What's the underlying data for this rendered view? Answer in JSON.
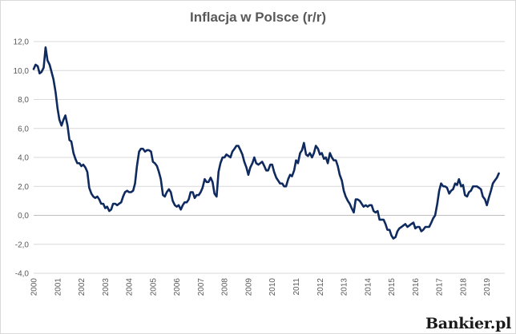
{
  "chart_data": {
    "type": "line",
    "title": "Inflacja w Polsce (r/r)",
    "xlabel": "",
    "ylabel": "",
    "ylim": [
      -4,
      12
    ],
    "y_ticks": [
      "-4,0",
      "-2,0",
      "0,0",
      "2,0",
      "4,0",
      "6,0",
      "8,0",
      "10,0",
      "12,0"
    ],
    "x_ticks": [
      "2000",
      "2001",
      "2002",
      "2003",
      "2004",
      "2005",
      "2006",
      "2007",
      "2008",
      "2009",
      "2010",
      "2011",
      "2012",
      "2013",
      "2014",
      "2015",
      "2016",
      "2017",
      "2018",
      "2019"
    ],
    "grid": true,
    "legend": "none",
    "line_color": "#0f2a5e",
    "series": [
      {
        "x": [
          2000.0,
          2000.08,
          2000.17,
          2000.25,
          2000.33,
          2000.42,
          2000.5,
          2000.58,
          2000.67,
          2000.75,
          2000.83,
          2000.92,
          2001.0,
          2001.08,
          2001.17,
          2001.25,
          2001.33,
          2001.42,
          2001.5,
          2001.58,
          2001.67,
          2001.75,
          2001.83,
          2001.92,
          2002.0,
          2002.08,
          2002.17,
          2002.25,
          2002.33,
          2002.42,
          2002.5,
          2002.58,
          2002.67,
          2002.75,
          2002.83,
          2002.92,
          2003.0,
          2003.08,
          2003.17,
          2003.25,
          2003.33,
          2003.42,
          2003.5,
          2003.58,
          2003.67,
          2003.75,
          2003.83,
          2003.92,
          2004.0,
          2004.08,
          2004.17,
          2004.25,
          2004.33,
          2004.42,
          2004.5,
          2004.58,
          2004.67,
          2004.75,
          2004.83,
          2004.92,
          2005.0,
          2005.08,
          2005.17,
          2005.25,
          2005.33,
          2005.42,
          2005.5,
          2005.58,
          2005.67,
          2005.75,
          2005.83,
          2005.92,
          2006.0,
          2006.08,
          2006.17,
          2006.25,
          2006.33,
          2006.42,
          2006.5,
          2006.58,
          2006.67,
          2006.75,
          2006.83,
          2006.92,
          2007.0,
          2007.08,
          2007.17,
          2007.25,
          2007.33,
          2007.42,
          2007.5,
          2007.58,
          2007.67,
          2007.75,
          2007.83,
          2007.92,
          2008.0,
          2008.08,
          2008.17,
          2008.25,
          2008.33,
          2008.42,
          2008.5,
          2008.58,
          2008.67,
          2008.75,
          2008.83,
          2008.92,
          2009.0,
          2009.08,
          2009.17,
          2009.25,
          2009.33,
          2009.42,
          2009.5,
          2009.58,
          2009.67,
          2009.75,
          2009.83,
          2009.92,
          2010.0,
          2010.08,
          2010.17,
          2010.25,
          2010.33,
          2010.42,
          2010.5,
          2010.58,
          2010.67,
          2010.75,
          2010.83,
          2010.92,
          2011.0,
          2011.08,
          2011.17,
          2011.25,
          2011.33,
          2011.42,
          2011.5,
          2011.58,
          2011.67,
          2011.75,
          2011.83,
          2011.92,
          2012.0,
          2012.08,
          2012.17,
          2012.25,
          2012.33,
          2012.42,
          2012.5,
          2012.58,
          2012.67,
          2012.75,
          2012.83,
          2012.92,
          2013.0,
          2013.08,
          2013.17,
          2013.25,
          2013.33,
          2013.42,
          2013.5,
          2013.58,
          2013.67,
          2013.75,
          2013.83,
          2013.92,
          2014.0,
          2014.08,
          2014.17,
          2014.25,
          2014.33,
          2014.42,
          2014.5,
          2014.58,
          2014.67,
          2014.75,
          2014.83,
          2014.92,
          2015.0,
          2015.08,
          2015.17,
          2015.25,
          2015.33,
          2015.42,
          2015.5,
          2015.58,
          2015.67,
          2015.75,
          2015.83,
          2015.92,
          2016.0,
          2016.08,
          2016.17,
          2016.25,
          2016.33,
          2016.42,
          2016.5,
          2016.58,
          2016.67,
          2016.75,
          2016.83,
          2016.92,
          2017.0,
          2017.08,
          2017.17,
          2017.25,
          2017.33,
          2017.42,
          2017.5,
          2017.58,
          2017.67,
          2017.75,
          2017.83,
          2017.92,
          2018.0,
          2018.08,
          2018.17,
          2018.25,
          2018.33,
          2018.42,
          2018.5,
          2018.58,
          2018.67,
          2018.75,
          2018.83,
          2018.92,
          2019.0,
          2019.08,
          2019.17,
          2019.25,
          2019.33,
          2019.42,
          2019.5
        ],
        "y": [
          10.1,
          10.4,
          10.3,
          9.8,
          9.9,
          10.2,
          11.6,
          10.7,
          10.4,
          9.9,
          9.4,
          8.5,
          7.4,
          6.6,
          6.2,
          6.6,
          6.9,
          6.2,
          5.2,
          5.1,
          4.3,
          3.9,
          3.6,
          3.6,
          3.4,
          3.5,
          3.3,
          3.0,
          1.9,
          1.5,
          1.3,
          1.2,
          1.3,
          1.1,
          0.8,
          0.8,
          0.5,
          0.6,
          0.3,
          0.4,
          0.8,
          0.8,
          0.7,
          0.8,
          0.9,
          1.3,
          1.6,
          1.7,
          1.6,
          1.6,
          1.7,
          2.2,
          3.4,
          4.4,
          4.6,
          4.6,
          4.4,
          4.5,
          4.5,
          4.4,
          3.7,
          3.6,
          3.4,
          3.0,
          2.5,
          1.4,
          1.3,
          1.6,
          1.8,
          1.6,
          1.0,
          0.7,
          0.6,
          0.7,
          0.4,
          0.7,
          0.9,
          0.9,
          1.1,
          1.6,
          1.6,
          1.2,
          1.4,
          1.4,
          1.6,
          1.9,
          2.5,
          2.3,
          2.3,
          2.6,
          2.3,
          1.5,
          1.3,
          3.0,
          3.6,
          4.0,
          4.0,
          4.2,
          4.1,
          4.0,
          4.4,
          4.6,
          4.8,
          4.8,
          4.5,
          4.2,
          3.7,
          3.3,
          2.8,
          3.3,
          3.6,
          4.0,
          3.6,
          3.5,
          3.6,
          3.7,
          3.4,
          3.1,
          3.1,
          3.5,
          3.5,
          3.0,
          2.6,
          2.4,
          2.2,
          2.2,
          2.0,
          2.0,
          2.5,
          2.8,
          2.7,
          3.1,
          3.8,
          3.6,
          4.3,
          4.5,
          5.0,
          4.2,
          4.1,
          4.3,
          4.0,
          4.3,
          4.8,
          4.6,
          4.2,
          4.3,
          3.9,
          4.0,
          3.6,
          4.3,
          4.0,
          3.8,
          3.8,
          3.4,
          2.8,
          2.4,
          1.7,
          1.3,
          1.0,
          0.8,
          0.5,
          0.2,
          1.1,
          1.1,
          1.0,
          0.8,
          0.6,
          0.7,
          0.6,
          0.7,
          0.7,
          0.3,
          0.2,
          0.3,
          -0.3,
          -0.3,
          -0.3,
          -0.6,
          -1.0,
          -1.0,
          -1.4,
          -1.6,
          -1.5,
          -1.1,
          -0.9,
          -0.8,
          -0.7,
          -0.6,
          -0.8,
          -0.7,
          -0.6,
          -0.5,
          -0.9,
          -0.8,
          -0.8,
          -1.1,
          -1.0,
          -0.8,
          -0.8,
          -0.8,
          -0.5,
          -0.2,
          0.0,
          0.8,
          1.7,
          2.2,
          2.0,
          2.0,
          1.9,
          1.5,
          1.7,
          1.8,
          2.2,
          2.1,
          2.5,
          2.0,
          2.1,
          1.4,
          1.3,
          1.6,
          1.7,
          2.0,
          2.0,
          2.0,
          1.9,
          1.8,
          1.3,
          1.1,
          0.7,
          1.2,
          1.7,
          2.2,
          2.4,
          2.6,
          2.9
        ]
      }
    ]
  },
  "brand": {
    "watermark": "Bankier.pl"
  }
}
